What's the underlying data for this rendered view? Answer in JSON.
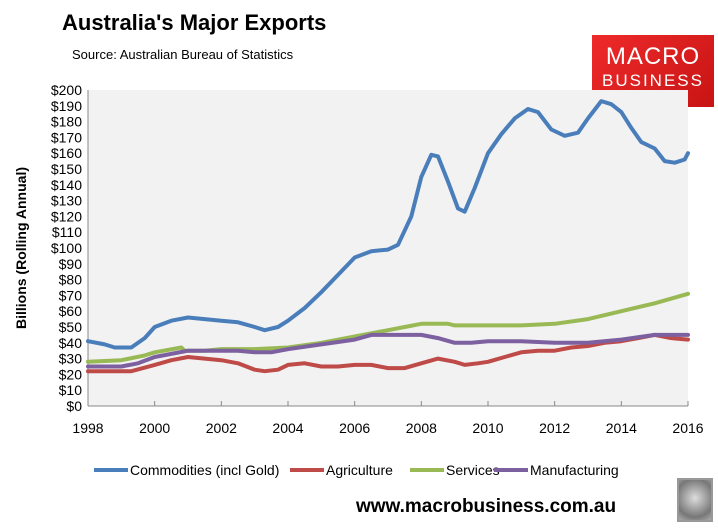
{
  "chart_data": {
    "type": "line",
    "title": "Australia's Major Exports",
    "subtitle": "Source:  Australian Bureau of Statistics",
    "xlabel": "",
    "ylabel": "Billions (Rolling Annual)",
    "xlim": [
      1998,
      2016
    ],
    "ylim": [
      0,
      200
    ],
    "x_ticks": [
      "1998",
      "2000",
      "2002",
      "2004",
      "2006",
      "2008",
      "2010",
      "2012",
      "2014",
      "2016"
    ],
    "y_ticks": [
      "$0",
      "$10",
      "$20",
      "$30",
      "$40",
      "$50",
      "$60",
      "$70",
      "$80",
      "$90",
      "$100",
      "$110",
      "$120",
      "$130",
      "$140",
      "$150",
      "$160",
      "$170",
      "$180",
      "$190",
      "$200"
    ],
    "grid": false,
    "legend_position": "bottom",
    "series": [
      {
        "name": "Commodities (incl Gold)",
        "color": "#4a7ebb",
        "x": [
          1998,
          1998.5,
          1998.8,
          1999.3,
          1999.7,
          2000,
          2000.5,
          2001,
          2001.5,
          2002,
          2002.5,
          2003,
          2003.3,
          2003.7,
          2004,
          2004.5,
          2005,
          2005.5,
          2006,
          2006.5,
          2007,
          2007.3,
          2007.7,
          2008,
          2008.3,
          2008.5,
          2008.8,
          2009.1,
          2009.3,
          2009.6,
          2010,
          2010.4,
          2010.8,
          2011.2,
          2011.5,
          2011.9,
          2012.3,
          2012.7,
          2013,
          2013.4,
          2013.7,
          2014,
          2014.3,
          2014.6,
          2015,
          2015.3,
          2015.6,
          2015.9,
          2016
        ],
        "values": [
          41,
          39,
          37,
          37,
          43,
          50,
          54,
          56,
          55,
          54,
          53,
          50,
          48,
          50,
          54,
          62,
          72,
          83,
          94,
          98,
          99,
          102,
          120,
          145,
          159,
          158,
          142,
          125,
          123,
          138,
          160,
          172,
          182,
          188,
          186,
          175,
          171,
          173,
          182,
          193,
          191,
          186,
          176,
          167,
          163,
          155,
          154,
          156,
          160
        ]
      },
      {
        "name": "Agriculture",
        "color": "#be4b48",
        "x": [
          1998,
          1999.3,
          2000,
          2000.5,
          2001,
          2001.5,
          2002,
          2002.5,
          2003,
          2003.3,
          2003.7,
          2004,
          2004.5,
          2005,
          2005.5,
          2006,
          2006.5,
          2007,
          2007.5,
          2008,
          2008.5,
          2009,
          2009.3,
          2009.7,
          2010,
          2010.5,
          2011,
          2011.5,
          2012,
          2012.5,
          2013,
          2013.5,
          2014,
          2014.5,
          2015,
          2015.5,
          2016
        ],
        "values": [
          22,
          22,
          26,
          29,
          31,
          30,
          29,
          27,
          23,
          22,
          23,
          26,
          27,
          25,
          25,
          26,
          26,
          24,
          24,
          27,
          30,
          28,
          26,
          27,
          28,
          31,
          34,
          35,
          35,
          37,
          38,
          40,
          41,
          43,
          45,
          43,
          42
        ]
      },
      {
        "name": "Services",
        "color": "#98b954",
        "x": [
          1998,
          1999,
          1999.7,
          2000,
          2000.8,
          2000.9,
          2001.5,
          2002,
          2003,
          2004,
          2005,
          2006,
          2007,
          2007.5,
          2008,
          2008.8,
          2009,
          2010,
          2011,
          2012,
          2013,
          2014,
          2015,
          2016
        ],
        "values": [
          28,
          29,
          32,
          34,
          37,
          35,
          35,
          36,
          36,
          37,
          40,
          44,
          48,
          50,
          52,
          52,
          51,
          51,
          51,
          52,
          55,
          60,
          65,
          71
        ]
      },
      {
        "name": "Manufacturing",
        "color": "#7d60a0",
        "x": [
          1998,
          1999,
          1999.5,
          2000,
          2000.5,
          2001,
          2002,
          2002.5,
          2003,
          2003.5,
          2004,
          2005,
          2006,
          2006.5,
          2007,
          2007.5,
          2008,
          2008.5,
          2009,
          2009.5,
          2010,
          2011,
          2012,
          2013,
          2014,
          2015,
          2016
        ],
        "values": [
          25,
          25,
          27,
          31,
          33,
          35,
          35,
          35,
          34,
          34,
          36,
          39,
          42,
          45,
          45,
          45,
          45,
          43,
          40,
          40,
          41,
          41,
          40,
          40,
          42,
          45,
          45
        ]
      }
    ]
  },
  "logo": {
    "line1": "MACRO",
    "line2": "BUSINESS"
  },
  "website": "www.macrobusiness.com.au"
}
